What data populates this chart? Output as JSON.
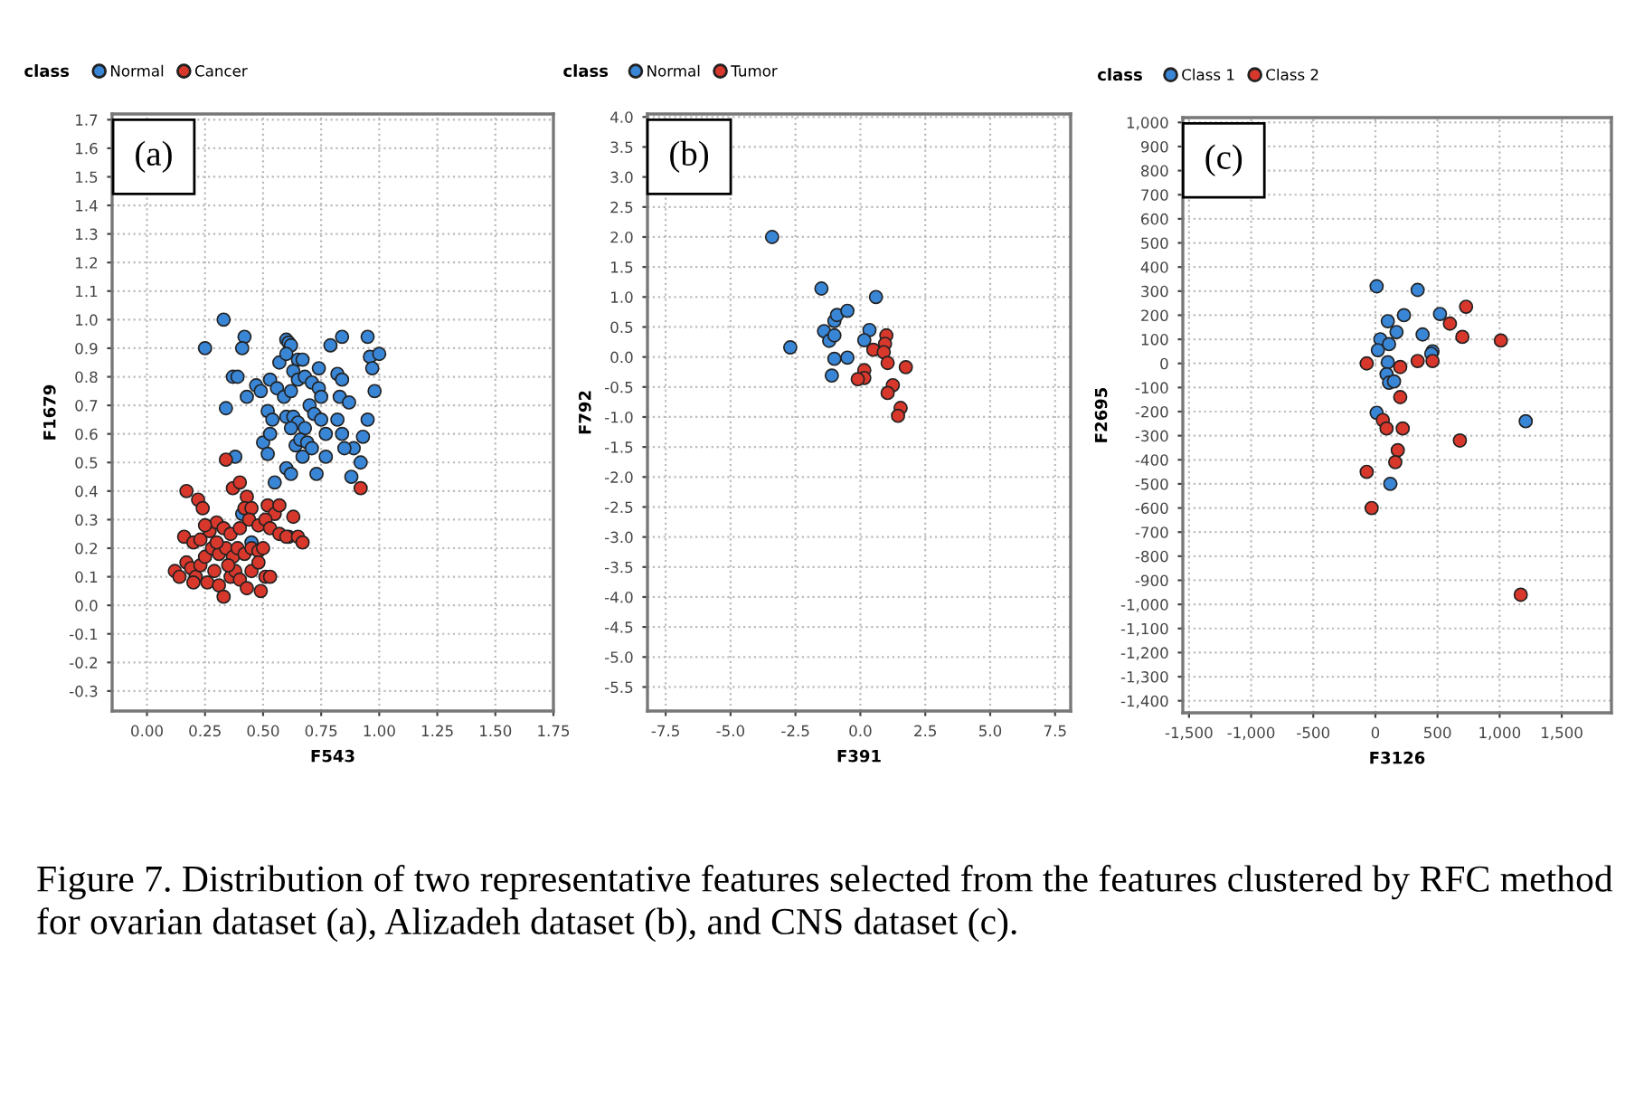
{
  "chart_data": [
    {
      "type": "scatter",
      "xlabel": "F543",
      "ylabel": "F1679",
      "legend_title": "class",
      "legend": "top left",
      "grid": true,
      "marker": "circle",
      "annotations": [
        "(a)",
        "Figure 7. Distribution of two representative features selected from the features clustered by RFC method for ovarian dataset (a), Alizadeh dataset (b), and CNS dataset (c)."
      ],
      "xlim": [
        -0.15,
        1.75
      ],
      "ylim": [
        -0.37,
        1.72
      ],
      "xticks": [
        {
          "value": 0,
          "label": "0.00"
        },
        0.25,
        {
          "value": 0.5,
          "label": "0.50"
        },
        0.75,
        {
          "value": 1,
          "label": "1.00"
        },
        1.25,
        {
          "value": 1.5,
          "label": "1.50"
        },
        1.75
      ],
      "yticks": [
        -0.3,
        -0.2,
        -0.1,
        {
          "value": 0,
          "label": "0.0"
        },
        0.1,
        0.2,
        0.3,
        0.4,
        0.5,
        0.6,
        0.7,
        0.8,
        0.9,
        {
          "value": 1,
          "label": "1.0"
        },
        1.1,
        1.2,
        1.3,
        1.4,
        1.5,
        1.6,
        1.7
      ],
      "series": [
        {
          "name": "Normal",
          "color": "#3a86d6",
          "x": [
            0.33,
            0.25,
            0.42,
            0.41,
            0.37,
            0.39,
            0.34,
            0.43,
            0.47,
            0.49,
            0.53,
            0.57,
            0.6,
            0.61,
            0.62,
            0.6,
            0.65,
            0.67,
            0.63,
            0.56,
            0.59,
            0.62,
            0.65,
            0.68,
            0.71,
            0.74,
            0.79,
            0.84,
            0.82,
            0.84,
            0.74,
            0.75,
            0.83,
            0.87,
            0.95,
            0.96,
            1.0,
            0.97,
            0.98,
            0.95,
            0.93,
            0.89,
            0.92,
            0.88,
            0.52,
            0.54,
            0.6,
            0.63,
            0.65,
            0.68,
            0.7,
            0.72,
            0.75,
            0.77,
            0.82,
            0.84,
            0.85,
            0.5,
            0.52,
            0.53,
            0.62,
            0.64,
            0.66,
            0.69,
            0.71,
            0.77,
            0.67,
            0.6,
            0.62,
            0.73,
            0.55,
            0.38,
            0.41,
            0.45,
            0.61
          ],
          "values": [
            1.0,
            0.9,
            0.94,
            0.9,
            0.8,
            0.8,
            0.69,
            0.73,
            0.77,
            0.75,
            0.79,
            0.85,
            0.93,
            0.92,
            0.91,
            0.88,
            0.86,
            0.86,
            0.82,
            0.76,
            0.73,
            0.75,
            0.79,
            0.8,
            0.78,
            0.83,
            0.91,
            0.94,
            0.81,
            0.79,
            0.76,
            0.73,
            0.73,
            0.71,
            0.94,
            0.87,
            0.88,
            0.83,
            0.75,
            0.65,
            0.59,
            0.55,
            0.5,
            0.45,
            0.68,
            0.65,
            0.66,
            0.66,
            0.64,
            0.62,
            0.7,
            0.67,
            0.65,
            0.6,
            0.65,
            0.6,
            0.55,
            0.57,
            0.53,
            0.6,
            0.62,
            0.56,
            0.58,
            0.57,
            0.55,
            0.52,
            0.52,
            0.48,
            0.46,
            0.46,
            0.43,
            0.52,
            0.32,
            0.22,
            0.24
          ]
        },
        {
          "name": "Cancer",
          "color": "#d8382c",
          "x": [
            0.34,
            0.92,
            0.17,
            0.22,
            0.24,
            0.37,
            0.4,
            0.43,
            0.42,
            0.45,
            0.52,
            0.55,
            0.57,
            0.63,
            0.16,
            0.2,
            0.23,
            0.27,
            0.3,
            0.33,
            0.36,
            0.4,
            0.44,
            0.48,
            0.51,
            0.53,
            0.57,
            0.6,
            0.65,
            0.67,
            0.12,
            0.14,
            0.17,
            0.19,
            0.21,
            0.23,
            0.25,
            0.28,
            0.31,
            0.34,
            0.37,
            0.39,
            0.42,
            0.45,
            0.48,
            0.5,
            0.2,
            0.26,
            0.29,
            0.31,
            0.33,
            0.36,
            0.38,
            0.4,
            0.43,
            0.45,
            0.48,
            0.49,
            0.51,
            0.53,
            0.35,
            0.3,
            0.25
          ],
          "values": [
            0.51,
            0.41,
            0.4,
            0.37,
            0.34,
            0.41,
            0.43,
            0.38,
            0.34,
            0.34,
            0.35,
            0.32,
            0.35,
            0.31,
            0.24,
            0.22,
            0.23,
            0.26,
            0.29,
            0.27,
            0.25,
            0.27,
            0.3,
            0.28,
            0.3,
            0.27,
            0.25,
            0.24,
            0.24,
            0.22,
            0.12,
            0.1,
            0.15,
            0.13,
            0.1,
            0.14,
            0.17,
            0.2,
            0.18,
            0.2,
            0.17,
            0.2,
            0.18,
            0.2,
            0.19,
            0.2,
            0.08,
            0.08,
            0.12,
            0.07,
            0.03,
            0.1,
            0.12,
            0.09,
            0.06,
            0.12,
            0.15,
            0.05,
            0.1,
            0.1,
            0.14,
            0.22,
            0.28
          ]
        }
      ]
    },
    {
      "type": "scatter",
      "xlabel": "F391",
      "ylabel": "F792",
      "legend_title": "class",
      "legend": "top left",
      "grid": true,
      "marker": "circle",
      "annotations": [
        "(b)"
      ],
      "xlim": [
        -8.2,
        8.1
      ],
      "ylim": [
        -5.9,
        4.05
      ],
      "xticks": [
        -7.5,
        {
          "value": -5,
          "label": "-5.0"
        },
        -2.5,
        {
          "value": 0,
          "label": "0.0"
        },
        2.5,
        {
          "value": 5,
          "label": "5.0"
        },
        7.5
      ],
      "yticks": [
        -5.5,
        {
          "value": -5,
          "label": "-5.0"
        },
        -4.5,
        {
          "value": -4,
          "label": "-4.0"
        },
        -3.5,
        {
          "value": -3,
          "label": "-3.0"
        },
        -2.5,
        {
          "value": -2,
          "label": "-2.0"
        },
        -1.5,
        {
          "value": -1,
          "label": "-1.0"
        },
        -0.5,
        {
          "value": 0,
          "label": "0.0"
        },
        0.5,
        {
          "value": 1,
          "label": "1.0"
        },
        1.5,
        {
          "value": 2,
          "label": "2.0"
        },
        2.5,
        {
          "value": 3,
          "label": "3.0"
        },
        3.5,
        {
          "value": 4,
          "label": "4.0"
        }
      ],
      "series": [
        {
          "name": "Normal",
          "color": "#3a86d6",
          "x": [
            -3.4,
            -2.7,
            -1.5,
            -1.4,
            -1.2,
            -1.0,
            -1.0,
            -0.9,
            -0.5,
            -1.1,
            -1.0,
            -0.5,
            0.6,
            0.35,
            0.15
          ],
          "values": [
            2.0,
            0.16,
            1.14,
            0.43,
            0.27,
            0.36,
            0.6,
            0.7,
            0.77,
            -0.31,
            -0.03,
            -0.01,
            1.0,
            0.45,
            0.28
          ]
        },
        {
          "name": "Tumor",
          "color": "#d8382c",
          "x": [
            1.0,
            0.95,
            0.5,
            0.9,
            1.05,
            1.75,
            0.15,
            0.15,
            -0.1,
            1.25,
            1.05,
            1.55,
            1.45
          ],
          "values": [
            0.36,
            0.22,
            0.12,
            0.08,
            -0.1,
            -0.17,
            -0.22,
            -0.35,
            -0.37,
            -0.47,
            -0.6,
            -0.85,
            -0.98
          ]
        }
      ]
    },
    {
      "type": "scatter",
      "xlabel": "F3126",
      "ylabel": "F2695",
      "legend_title": "class",
      "legend": "top left",
      "grid": true,
      "marker": "circle",
      "annotations": [
        "(c)"
      ],
      "xlim": [
        -1550,
        1900
      ],
      "ylim": [
        -1450,
        1020
      ],
      "xticks": [
        {
          "value": -1500,
          "label": "-1,500"
        },
        {
          "value": -1000,
          "label": "-1,000"
        },
        -500,
        0,
        500,
        {
          "value": 1000,
          "label": "1,000"
        },
        {
          "value": 1500,
          "label": "1,500"
        }
      ],
      "yticks": [
        {
          "value": -1400,
          "label": "-1,400"
        },
        {
          "value": -1300,
          "label": "-1,300"
        },
        {
          "value": -1200,
          "label": "-1,200"
        },
        {
          "value": -1100,
          "label": "-1,100"
        },
        {
          "value": -1000,
          "label": "-1,000"
        },
        -900,
        -800,
        -700,
        -600,
        -500,
        -400,
        -300,
        -200,
        -100,
        0,
        100,
        200,
        300,
        400,
        500,
        600,
        700,
        800,
        900,
        {
          "value": 1000,
          "label": "1,000"
        }
      ],
      "series": [
        {
          "name": "Class 1",
          "color": "#3a86d6",
          "x": [
            10,
            340,
            230,
            520,
            380,
            100,
            170,
            40,
            110,
            20,
            460,
            450,
            100,
            90,
            110,
            150,
            10,
            120,
            1210
          ],
          "values": [
            320,
            305,
            200,
            205,
            120,
            175,
            130,
            100,
            80,
            55,
            50,
            40,
            5,
            -45,
            -80,
            -75,
            -205,
            -500,
            -240
          ]
        },
        {
          "name": "Class 2",
          "color": "#d8382c",
          "x": [
            730,
            600,
            700,
            1010,
            340,
            460,
            -70,
            200,
            200,
            60,
            90,
            220,
            180,
            160,
            -70,
            -30,
            680,
            1170
          ],
          "values": [
            235,
            165,
            110,
            95,
            10,
            10,
            0,
            -15,
            -140,
            -235,
            -270,
            -270,
            -360,
            -410,
            -450,
            -600,
            -320,
            -960
          ]
        }
      ]
    }
  ]
}
